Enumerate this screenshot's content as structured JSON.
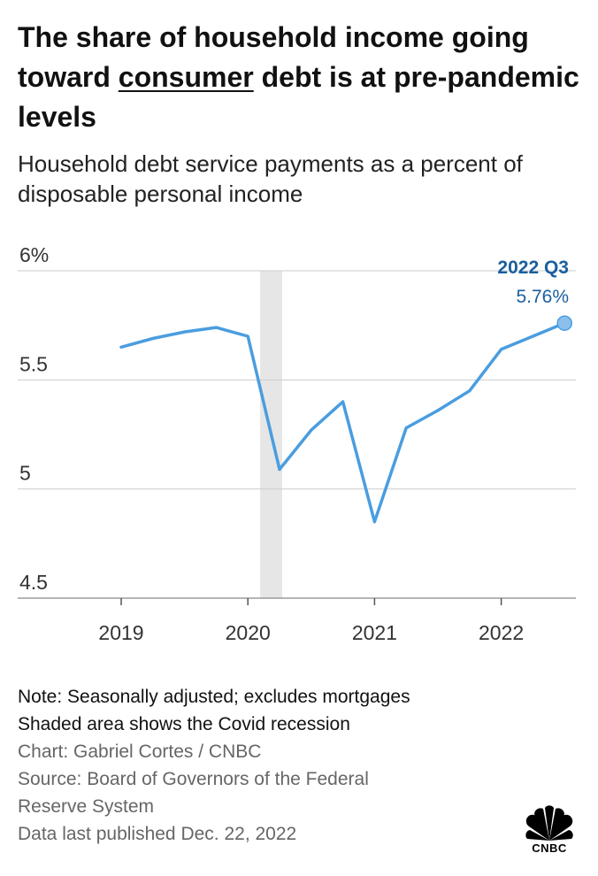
{
  "title": {
    "before": "The share of household income going toward ",
    "underlined": "consumer",
    "after": " debt is at pre-pandemic levels"
  },
  "subtitle": "Household debt service payments as a percent of disposable personal income",
  "chart_data": {
    "type": "line",
    "title": "The share of household income going toward consumer debt is at pre-pandemic levels",
    "subtitle": "Household debt service payments as a percent of disposable personal income",
    "xlabel": "",
    "ylabel": "",
    "ylim": [
      4.5,
      6.0
    ],
    "y_ticks": [
      "6%",
      "5.5",
      "5",
      "4.5"
    ],
    "y_tick_values": [
      6.0,
      5.5,
      5.0,
      4.5
    ],
    "x_ticks": [
      "2019",
      "2020",
      "2021",
      "2022"
    ],
    "grid": true,
    "series": [
      {
        "x": [
          "2019 Q1",
          "2019 Q2",
          "2019 Q3",
          "2019 Q4",
          "2020 Q1",
          "2020 Q2",
          "2020 Q3",
          "2020 Q4",
          "2021 Q1",
          "2021 Q2",
          "2021 Q3",
          "2021 Q4",
          "2022 Q1",
          "2022 Q2",
          "2022 Q3"
        ],
        "values": [
          5.65,
          5.69,
          5.72,
          5.74,
          5.7,
          5.09,
          5.27,
          5.4,
          4.85,
          5.28,
          5.36,
          5.45,
          5.64,
          5.7,
          5.76
        ]
      }
    ],
    "shaded_region": {
      "from": "2020 Q1",
      "to": "2020 Q2",
      "label": "Covid recession"
    },
    "annotation": {
      "period": "2022 Q3",
      "value_label": "5.76%"
    },
    "colors": {
      "line": "#4a9de0",
      "annotation": "#1a5f9e",
      "shade": "#e6e6e6",
      "grid": "#cccccc"
    }
  },
  "notes": [
    "Note: Seasonally adjusted; excludes mortgages",
    "Shaded area shows the Covid recession"
  ],
  "credits": [
    "Chart: Gabriel Cortes / CNBC",
    "Source: Board of Governors of the Federal",
    "Reserve System",
    "Data last published Dec. 22, 2022"
  ],
  "logo": {
    "text": "CNBC",
    "icon": "peacock-icon"
  }
}
